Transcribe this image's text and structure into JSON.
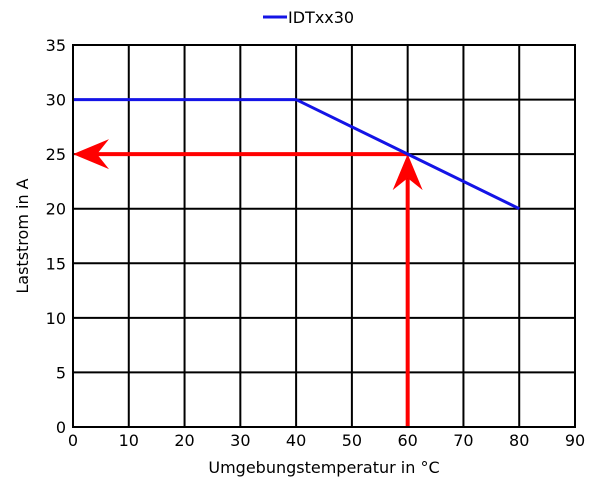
{
  "chart_data": {
    "type": "line",
    "title": "",
    "xlabel": "Umgebungstemperatur in °C",
    "ylabel": "Laststrom in A",
    "xlim": [
      0,
      90
    ],
    "ylim": [
      0,
      35
    ],
    "xticks": [
      0,
      10,
      20,
      30,
      40,
      50,
      60,
      70,
      80,
      90
    ],
    "yticks": [
      0,
      5,
      10,
      15,
      20,
      25,
      30,
      35
    ],
    "grid": true,
    "legend_position": "top-center",
    "series": [
      {
        "name": "IDTxx30",
        "color": "#1414e6",
        "points": [
          [
            0,
            30
          ],
          [
            40,
            30
          ],
          [
            80,
            20
          ]
        ]
      }
    ],
    "annotations": [
      {
        "kind": "arrow",
        "color": "#ff0000",
        "from": [
          60,
          0
        ],
        "to": [
          60,
          25
        ]
      },
      {
        "kind": "arrow",
        "color": "#ff0000",
        "from": [
          60,
          25
        ],
        "to": [
          0,
          25
        ]
      }
    ]
  }
}
